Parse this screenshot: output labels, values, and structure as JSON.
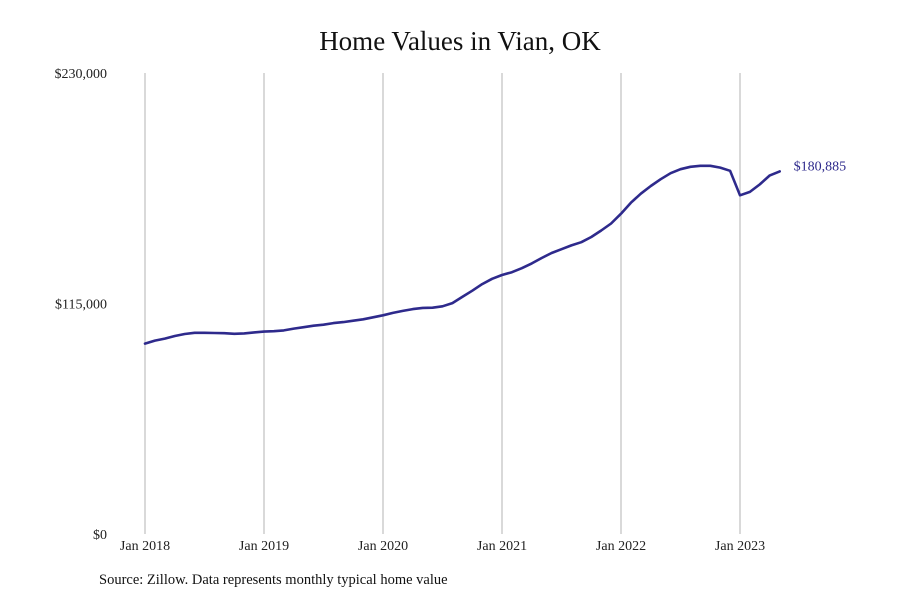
{
  "chart_data": {
    "type": "line",
    "title": "Home Values in Vian, OK",
    "source": "Source: Zillow. Data represents monthly typical home value",
    "ylim": [
      0,
      230000
    ],
    "y_ticks": [
      {
        "value": 0,
        "label": "$0"
      },
      {
        "value": 115000,
        "label": "$115,000"
      },
      {
        "value": 230000,
        "label": "$230,000"
      }
    ],
    "x_ticks": [
      {
        "value": "2018-01",
        "label": "Jan 2018"
      },
      {
        "value": "2019-01",
        "label": "Jan 2019"
      },
      {
        "value": "2020-01",
        "label": "Jan 2020"
      },
      {
        "value": "2021-01",
        "label": "Jan 2021"
      },
      {
        "value": "2022-01",
        "label": "Jan 2022"
      },
      {
        "value": "2023-01",
        "label": "Jan 2023"
      }
    ],
    "grid": "vertical",
    "line_color": "#2e2a8c",
    "end_label": "$180,885",
    "series": [
      {
        "x": [
          "2018-01",
          "2018-02",
          "2018-03",
          "2018-04",
          "2018-05",
          "2018-06",
          "2018-07",
          "2018-08",
          "2018-09",
          "2018-10",
          "2018-11",
          "2018-12",
          "2019-01",
          "2019-02",
          "2019-03",
          "2019-04",
          "2019-05",
          "2019-06",
          "2019-07",
          "2019-08",
          "2019-09",
          "2019-10",
          "2019-11",
          "2019-12",
          "2020-01",
          "2020-02",
          "2020-03",
          "2020-04",
          "2020-05",
          "2020-06",
          "2020-07",
          "2020-08",
          "2020-09",
          "2020-10",
          "2020-11",
          "2020-12",
          "2021-01",
          "2021-02",
          "2021-03",
          "2021-04",
          "2021-05",
          "2021-06",
          "2021-07",
          "2021-08",
          "2021-09",
          "2021-10",
          "2021-11",
          "2021-12",
          "2022-01",
          "2022-02",
          "2022-03",
          "2022-04",
          "2022-05",
          "2022-06",
          "2022-07",
          "2022-08",
          "2022-09",
          "2022-10",
          "2022-11",
          "2022-12",
          "2023-01",
          "2023-02",
          "2023-03",
          "2023-04",
          "2023-05"
        ],
        "values": [
          95000,
          96500,
          97500,
          98800,
          99800,
          100400,
          100400,
          100300,
          100200,
          99900,
          100100,
          100600,
          101000,
          101200,
          101600,
          102500,
          103200,
          103900,
          104400,
          105200,
          105700,
          106400,
          107100,
          108100,
          109100,
          110300,
          111300,
          112200,
          112800,
          112900,
          113600,
          115200,
          118300,
          121400,
          124700,
          127300,
          129200,
          130600,
          132600,
          135000,
          137700,
          140200,
          142100,
          144000,
          145600,
          148200,
          151400,
          154900,
          159800,
          165300,
          169800,
          173600,
          177000,
          180000,
          182000,
          183200,
          183700,
          183700,
          182800,
          181200,
          169000,
          170700,
          174400,
          178900,
          180885
        ]
      }
    ]
  }
}
